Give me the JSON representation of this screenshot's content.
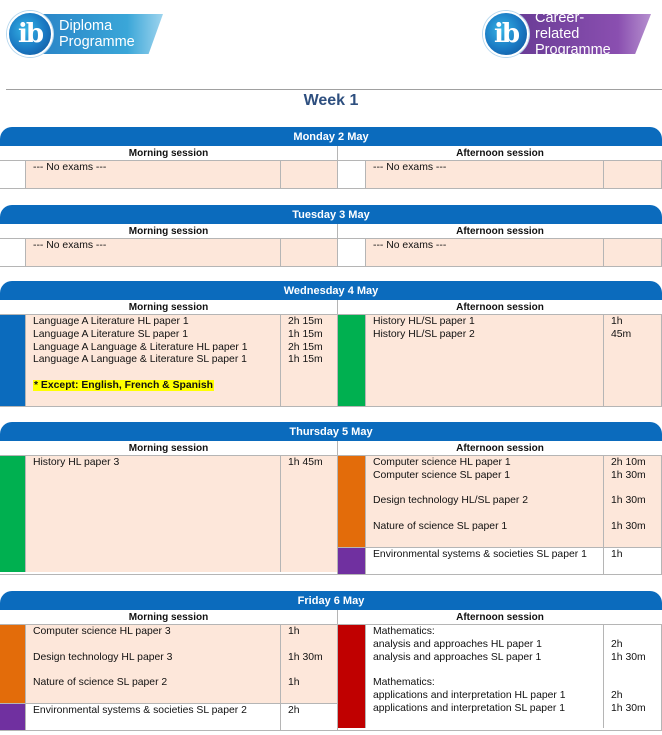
{
  "header": {
    "logo_left": {
      "icon": "ib-logo",
      "line1": "Diploma",
      "line2": "Programme",
      "color": "#2a86c8"
    },
    "logo_right": {
      "icon": "ib-logo",
      "line1": "Career-related",
      "line2": "Programme",
      "color": "#7a46a6"
    },
    "week_title": "Week 1"
  },
  "labels": {
    "morning": "Morning session",
    "afternoon": "Afternoon session"
  },
  "colors": {
    "day_bar": "#0b6bbd",
    "blue": "#0b6bbd",
    "green": "#00b050",
    "orange": "#e36c0a",
    "purple": "#7030a0",
    "red": "#c00000",
    "peach": "#fde7da",
    "highlight": "#ffff00"
  },
  "days": [
    {
      "title": "Monday 2 May",
      "morning": [
        {
          "color": "none",
          "bg": "peach",
          "lines": [
            {
              "exam": "--- No exams ---",
              "duration": ""
            },
            {
              "exam": "",
              "duration": ""
            }
          ]
        }
      ],
      "afternoon": [
        {
          "color": "none",
          "bg": "peach",
          "lines": [
            {
              "exam": "--- No exams ---",
              "duration": ""
            },
            {
              "exam": "",
              "duration": ""
            }
          ]
        }
      ]
    },
    {
      "title": "Tuesday 3 May",
      "morning": [
        {
          "color": "none",
          "bg": "peach",
          "lines": [
            {
              "exam": "--- No exams ---",
              "duration": ""
            },
            {
              "exam": "",
              "duration": ""
            }
          ]
        }
      ],
      "afternoon": [
        {
          "color": "none",
          "bg": "peach",
          "lines": [
            {
              "exam": "--- No exams ---",
              "duration": ""
            },
            {
              "exam": "",
              "duration": ""
            }
          ]
        }
      ]
    },
    {
      "title": "Wednesday 4 May",
      "morning": [
        {
          "color": "blue",
          "bg": "peach",
          "lines": [
            {
              "exam": "Language A Literature HL paper 1",
              "duration": "2h 15m"
            },
            {
              "exam": "Language A Literature SL paper 1",
              "duration": "1h 15m"
            },
            {
              "exam": "Language A Language & Literature HL paper 1",
              "duration": "2h 15m"
            },
            {
              "exam": "Language A Language & Literature SL paper 1",
              "duration": "1h 15m"
            },
            {
              "exam": "",
              "duration": ""
            },
            {
              "exam": "* Except: English, French & Spanish",
              "duration": "",
              "note": true
            },
            {
              "exam": "",
              "duration": ""
            }
          ]
        }
      ],
      "afternoon": [
        {
          "color": "green",
          "bg": "peach",
          "lines": [
            {
              "exam": "History HL/SL paper 1",
              "duration": "1h"
            },
            {
              "exam": "History HL/SL paper 2",
              "duration": "45m"
            },
            {
              "exam": "",
              "duration": ""
            },
            {
              "exam": "",
              "duration": ""
            },
            {
              "exam": "",
              "duration": ""
            },
            {
              "exam": "",
              "duration": ""
            },
            {
              "exam": "",
              "duration": ""
            }
          ]
        }
      ]
    },
    {
      "title": "Thursday 5 May",
      "morning": [
        {
          "color": "green",
          "bg": "peach",
          "lines": [
            {
              "exam": "History HL paper 3",
              "duration": "1h 45m"
            },
            {
              "exam": "",
              "duration": ""
            },
            {
              "exam": "",
              "duration": ""
            },
            {
              "exam": "",
              "duration": ""
            },
            {
              "exam": "",
              "duration": ""
            },
            {
              "exam": "",
              "duration": ""
            },
            {
              "exam": "",
              "duration": ""
            },
            {
              "exam": "",
              "duration": ""
            },
            {
              "exam": "",
              "duration": ""
            }
          ]
        }
      ],
      "afternoon": [
        {
          "color": "orange",
          "bg": "peach",
          "lines": [
            {
              "exam": "Computer science HL paper 1",
              "duration": "2h 10m"
            },
            {
              "exam": "Computer science SL paper 1",
              "duration": "1h 30m"
            },
            {
              "exam": "",
              "duration": ""
            },
            {
              "exam": "Design technology HL/SL paper 2",
              "duration": "1h 30m"
            },
            {
              "exam": "",
              "duration": ""
            },
            {
              "exam": "Nature of science SL paper 1",
              "duration": "1h 30m"
            },
            {
              "exam": "",
              "duration": ""
            }
          ]
        },
        {
          "color": "purple",
          "bg": "white",
          "lines": [
            {
              "exam": "Environmental systems & societies SL paper 1",
              "duration": "1h"
            },
            {
              "exam": "",
              "duration": ""
            }
          ]
        }
      ]
    },
    {
      "title": "Friday 6 May",
      "morning": [
        {
          "color": "orange",
          "bg": "peach",
          "lines": [
            {
              "exam": "Computer science HL paper 3",
              "duration": "1h"
            },
            {
              "exam": "",
              "duration": ""
            },
            {
              "exam": "Design technology HL paper 3",
              "duration": "1h 30m"
            },
            {
              "exam": "",
              "duration": ""
            },
            {
              "exam": "Nature of science SL paper 2",
              "duration": "1h"
            },
            {
              "exam": "",
              "duration": ""
            }
          ]
        },
        {
          "color": "purple",
          "bg": "white",
          "lines": [
            {
              "exam": "Environmental systems & societies SL paper 2",
              "duration": "2h"
            },
            {
              "exam": "",
              "duration": ""
            }
          ]
        }
      ],
      "afternoon": [
        {
          "color": "red",
          "bg": "white",
          "lines": [
            {
              "exam": "Mathematics:",
              "duration": ""
            },
            {
              "exam": "analysis and approaches HL paper 1",
              "duration": "2h"
            },
            {
              "exam": "analysis and approaches SL paper 1",
              "duration": "1h 30m"
            },
            {
              "exam": "",
              "duration": ""
            },
            {
              "exam": "Mathematics:",
              "duration": ""
            },
            {
              "exam": "applications and interpretation HL paper 1",
              "duration": "2h"
            },
            {
              "exam": "applications and interpretation SL paper 1",
              "duration": "1h 30m"
            },
            {
              "exam": "",
              "duration": ""
            }
          ]
        }
      ]
    }
  ]
}
